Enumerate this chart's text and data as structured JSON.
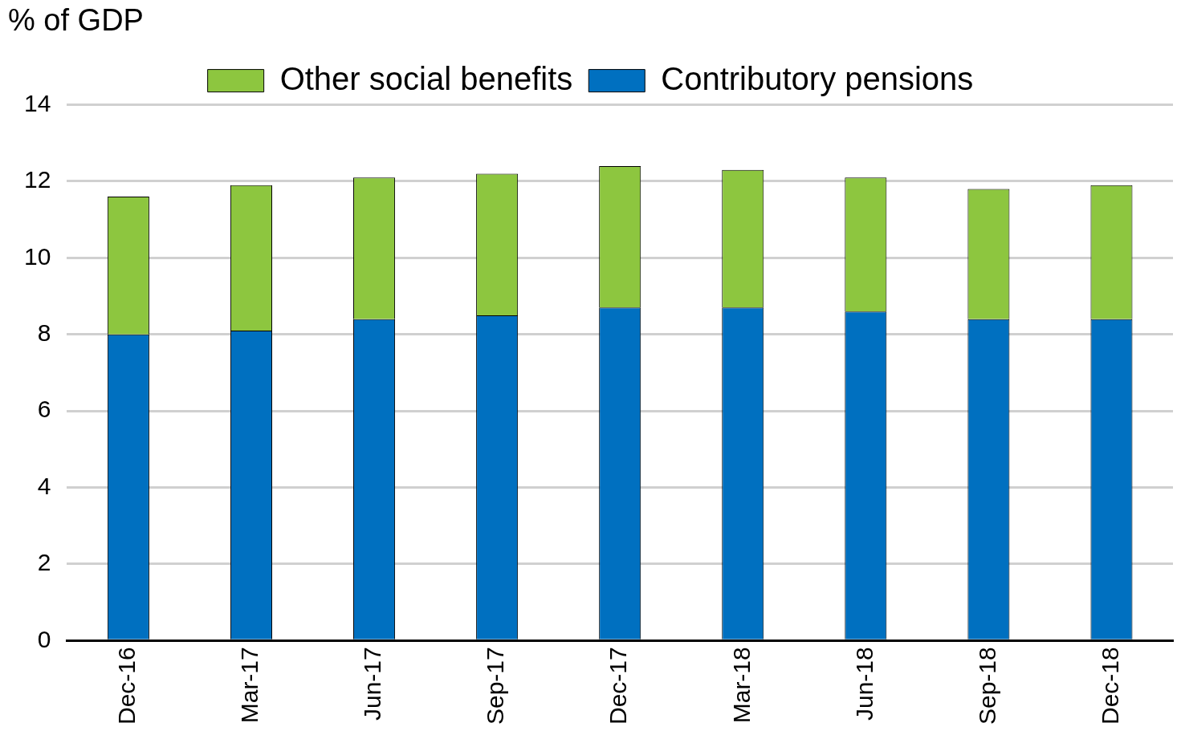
{
  "chart_data": {
    "type": "bar",
    "ylabel": "% of GDP",
    "stacked": true,
    "categories": [
      "Dec-16",
      "Mar-17",
      "Jun-17",
      "Sep-17",
      "Dec-17",
      "Mar-18",
      "Jun-18",
      "Sep-18",
      "Dec-18"
    ],
    "series": [
      {
        "name": "Contributory pensions",
        "color": "#0070c0",
        "values": [
          8.0,
          8.1,
          8.4,
          8.5,
          8.7,
          8.7,
          8.6,
          8.4,
          8.4
        ]
      },
      {
        "name": "Other social benefits",
        "color": "#8dc63f",
        "values": [
          3.6,
          3.8,
          3.7,
          3.7,
          3.7,
          3.6,
          3.5,
          3.4,
          3.5
        ]
      }
    ],
    "ylim": [
      0,
      14
    ],
    "yticks": [
      0,
      2,
      4,
      6,
      8,
      10,
      12,
      14
    ],
    "grid": "y",
    "legend": "top"
  }
}
